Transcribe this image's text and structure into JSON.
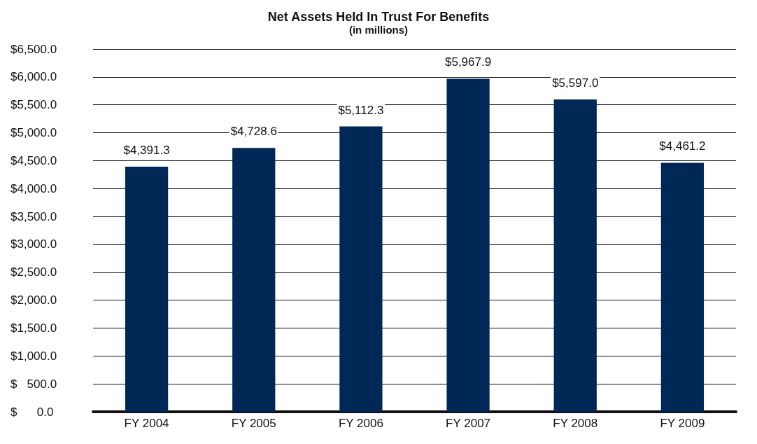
{
  "chart_data": {
    "type": "bar",
    "title": "Net Assets Held In Trust For Benefits",
    "subtitle": "(in millions)",
    "categories": [
      "FY 2004",
      "FY 2005",
      "FY 2006",
      "FY 2007",
      "FY 2008",
      "FY 2009"
    ],
    "values": [
      4391.3,
      4728.6,
      5112.3,
      5967.9,
      5597.0,
      4461.2
    ],
    "value_labels": [
      "$4,391.3",
      "$4,728.6",
      "$5,112.3",
      "$5,967.9",
      "$5,597.0",
      "$4,461.2"
    ],
    "color": "#002856",
    "ylim": [
      0,
      6500
    ],
    "yticks": [
      {
        "value": 0,
        "label": "$      0.0"
      },
      {
        "value": 500,
        "label": "$   500.0"
      },
      {
        "value": 1000,
        "label": "$1,000.0"
      },
      {
        "value": 1500,
        "label": "$1,500.0"
      },
      {
        "value": 2000,
        "label": "$2,000.0"
      },
      {
        "value": 2500,
        "label": "$2,500.0"
      },
      {
        "value": 3000,
        "label": "$3,000.0"
      },
      {
        "value": 3500,
        "label": "$3,500.0"
      },
      {
        "value": 4000,
        "label": "$4,000.0"
      },
      {
        "value": 4500,
        "label": "$4,500.0"
      },
      {
        "value": 5000,
        "label": "$5,000.0"
      },
      {
        "value": 5500,
        "label": "$5,500.0"
      },
      {
        "value": 6000,
        "label": "$6,000.0"
      },
      {
        "value": 6500,
        "label": "$6,500.0"
      }
    ],
    "grid": "y"
  }
}
